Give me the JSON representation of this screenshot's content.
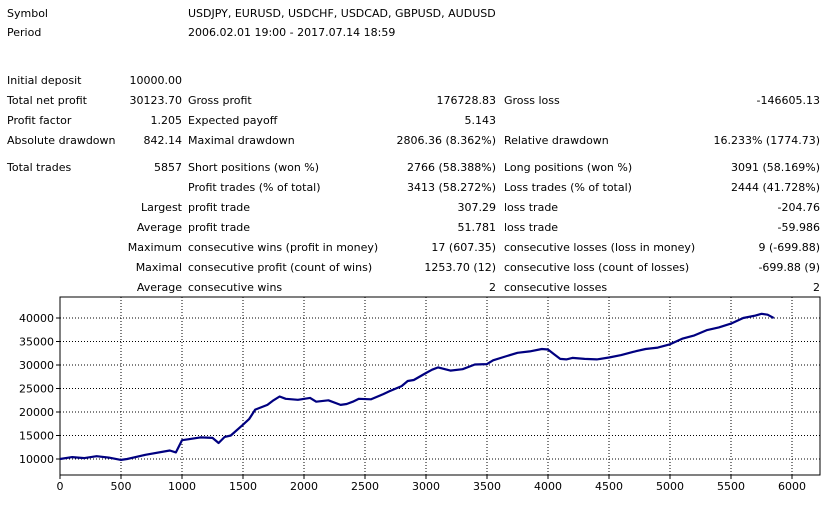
{
  "report": {
    "symbol_label": "Symbol",
    "symbol_value": "USDJPY, EURUSD, USDCHF, USDCAD, GBPUSD, AUDUSD",
    "period_label": "Period",
    "period_value": "2006.02.01 19:00 - 2017.07.14 18:59",
    "initial_deposit_label": "Initial deposit",
    "initial_deposit_value": "10000.00",
    "total_net_profit_label": "Total net profit",
    "total_net_profit_value": "30123.70",
    "gross_profit_label": "Gross profit",
    "gross_profit_value": "176728.83",
    "gross_loss_label": "Gross loss",
    "gross_loss_value": "-146605.13",
    "profit_factor_label": "Profit factor",
    "profit_factor_value": "1.205",
    "expected_payoff_label": "Expected payoff",
    "expected_payoff_value": "5.143",
    "absolute_drawdown_label": "Absolute drawdown",
    "absolute_drawdown_value": "842.14",
    "maximal_drawdown_label": "Maximal drawdown",
    "maximal_drawdown_value": "2806.36 (8.362%)",
    "relative_drawdown_label": "Relative drawdown",
    "relative_drawdown_value": "16.233% (1774.73)",
    "total_trades_label": "Total trades",
    "total_trades_value": "5857",
    "short_positions_label": "Short positions (won %)",
    "short_positions_value": "2766 (58.388%)",
    "long_positions_label": "Long positions (won %)",
    "long_positions_value": "3091 (58.169%)",
    "profit_trades_label": "Profit trades (% of total)",
    "profit_trades_value": "3413 (58.272%)",
    "loss_trades_label": "Loss trades (% of total)",
    "loss_trades_value": "2444 (41.728%)",
    "largest_label": "Largest",
    "largest_profit_label": "profit trade",
    "largest_profit_value": "307.29",
    "largest_loss_label": "loss trade",
    "largest_loss_value": "-204.76",
    "average_label": "Average",
    "average_profit_label": "profit trade",
    "average_profit_value": "51.781",
    "average_loss_label": "loss trade",
    "average_loss_value": "-59.986",
    "maximum_label": "Maximum",
    "max_consec_wins_label": "consecutive wins (profit in money)",
    "max_consec_wins_value": "17 (607.35)",
    "max_consec_losses_label": "consecutive losses (loss in money)",
    "max_consec_losses_value": "9 (-699.88)",
    "maximal_label": "Maximal",
    "maximal_consec_profit_label": "consecutive profit (count of wins)",
    "maximal_consec_profit_value": "1253.70 (12)",
    "maximal_consec_loss_label": "consecutive loss (count of losses)",
    "maximal_consec_loss_value": "-699.88 (9)",
    "average2_label": "Average",
    "avg_consec_wins_label": "consecutive wins",
    "avg_consec_wins_value": "2",
    "avg_consec_losses_label": "consecutive losses",
    "avg_consec_losses_value": "2"
  },
  "chart_data": {
    "type": "line",
    "title": "",
    "xlabel": "",
    "ylabel": "",
    "xlim": [
      0,
      6000
    ],
    "ylim": [
      8000,
      42000
    ],
    "x_ticks": [
      0,
      500,
      1000,
      1500,
      2000,
      2500,
      3000,
      3500,
      4000,
      4500,
      5000,
      5500,
      6000
    ],
    "y_ticks": [
      10000,
      15000,
      20000,
      25000,
      30000,
      35000,
      40000
    ],
    "grid": true,
    "line_color": "#000080",
    "series": [
      {
        "name": "",
        "x": [
          0,
          100,
          200,
          300,
          400,
          500,
          550,
          700,
          900,
          950,
          1000,
          1050,
          1150,
          1250,
          1300,
          1350,
          1400,
          1500,
          1550,
          1600,
          1700,
          1750,
          1800,
          1850,
          1950,
          2050,
          2100,
          2200,
          2300,
          2350,
          2400,
          2450,
          2550,
          2650,
          2700,
          2800,
          2850,
          2900,
          3000,
          3050,
          3100,
          3200,
          3300,
          3350,
          3400,
          3500,
          3550,
          3650,
          3750,
          3850,
          3950,
          4000,
          4050,
          4100,
          4150,
          4200,
          4300,
          4400,
          4500,
          4600,
          4700,
          4800,
          4900,
          5000,
          5100,
          5200,
          5300,
          5400,
          5500,
          5600,
          5700,
          5750,
          5800,
          5850
        ],
        "y": [
          10000,
          10400,
          10200,
          10600,
          10300,
          9800,
          10000,
          10900,
          11800,
          11400,
          14000,
          14200,
          14600,
          14500,
          13400,
          14700,
          15000,
          17300,
          18500,
          20500,
          21500,
          22500,
          23300,
          22800,
          22600,
          23000,
          22200,
          22500,
          21500,
          21700,
          22200,
          22800,
          22700,
          23800,
          24400,
          25500,
          26600,
          26800,
          28300,
          29000,
          29500,
          28800,
          29100,
          29600,
          30100,
          30200,
          31000,
          31800,
          32600,
          32900,
          33400,
          33300,
          32300,
          31300,
          31200,
          31500,
          31300,
          31200,
          31600,
          32100,
          32800,
          33400,
          33700,
          34400,
          35600,
          36300,
          37400,
          38000,
          38800,
          40000,
          40500,
          40900,
          40700,
          40000
        ]
      }
    ]
  }
}
